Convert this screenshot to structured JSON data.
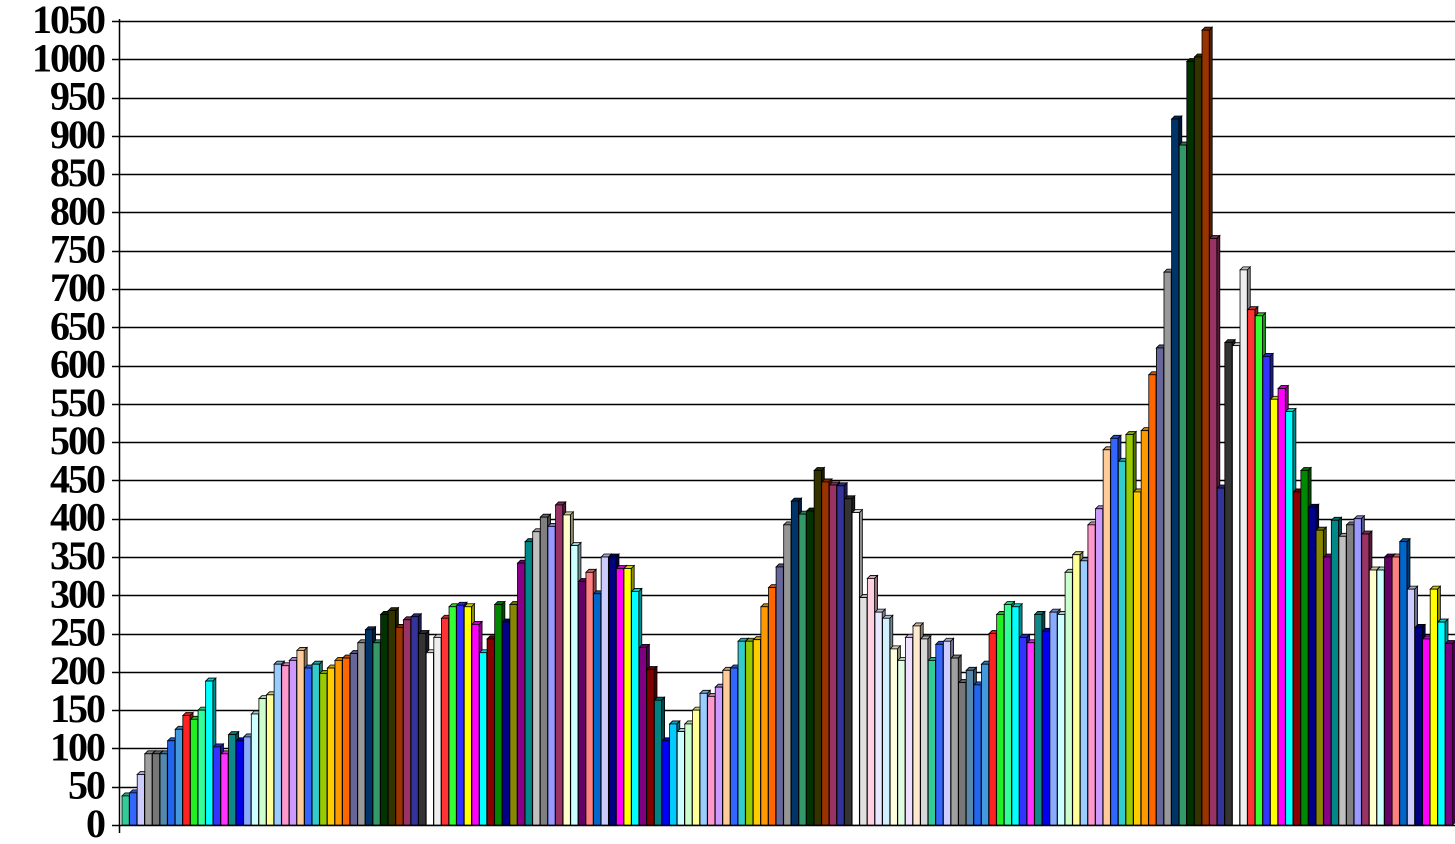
{
  "chart_data": {
    "type": "bar",
    "title": "",
    "xlabel": "",
    "ylabel": "",
    "ylim": [
      0,
      1050
    ],
    "y_ticks": [
      0,
      50,
      100,
      150,
      200,
      250,
      300,
      350,
      400,
      450,
      500,
      550,
      600,
      650,
      700,
      750,
      800,
      850,
      900,
      950,
      1000,
      1050
    ],
    "y_tick_labels": [
      "0",
      "50",
      "100",
      "150",
      "200",
      "250",
      "300",
      "350",
      "400",
      "450",
      "500",
      "550",
      "600",
      "650",
      "700",
      "750",
      "800",
      "850",
      "900",
      "950",
      "1000",
      "1050"
    ],
    "grid": true,
    "legend": "none",
    "style": "3d-shaded",
    "values": [
      38,
      42,
      66,
      93,
      93,
      93,
      110,
      125,
      143,
      138,
      150,
      188,
      102,
      93,
      118,
      110,
      115,
      145,
      165,
      170,
      210,
      208,
      215,
      228,
      205,
      210,
      198,
      205,
      215,
      218,
      224,
      238,
      255,
      238,
      275,
      280,
      258,
      268,
      272,
      250,
      225,
      245,
      270,
      285,
      287,
      285,
      262,
      225,
      243,
      288,
      265,
      288,
      342,
      370,
      383,
      402,
      390,
      418,
      405,
      365,
      318,
      330,
      302,
      350,
      350,
      335,
      335,
      305,
      232,
      203,
      163,
      110,
      132,
      122,
      132,
      150,
      172,
      168,
      180,
      202,
      205,
      240,
      240,
      242,
      285,
      310,
      337,
      392,
      423,
      406,
      410,
      463,
      448,
      444,
      443,
      426,
      408,
      297,
      322,
      278,
      270,
      230,
      215,
      245,
      260,
      243,
      215,
      236,
      240,
      218,
      186,
      202,
      183,
      210,
      250,
      275,
      288,
      285,
      245,
      238,
      275,
      253,
      278,
      275,
      330,
      353,
      345,
      392,
      413,
      490,
      505,
      475,
      510,
      435,
      515,
      588,
      623,
      722,
      922,
      888,
      997,
      1003,
      1038,
      766,
      440,
      630,
      626,
      725,
      673,
      665,
      612,
      556,
      570,
      540,
      435,
      463,
      415,
      385,
      350,
      398,
      377,
      392,
      400,
      380,
      333,
      333,
      350,
      350,
      370,
      308,
      258,
      243,
      308,
      265,
      237
    ],
    "colors": [
      "#33cc99",
      "#3366ff",
      "#ccccff",
      "#a0a0a0",
      "#777777",
      "#5588aa",
      "#2266ee",
      "#4499dd",
      "#ff2222",
      "#22ee22",
      "#33ff99",
      "#00ffff",
      "#3333ff",
      "#ff33ff",
      "#118888",
      "#0000ee",
      "#88aaff",
      "#ccffff",
      "#ccffcc",
      "#ffff99",
      "#99ccff",
      "#ff99cc",
      "#cc99ff",
      "#ffcc99",
      "#3366ff",
      "#33cccc",
      "#99cc00",
      "#ffcc00",
      "#ff9900",
      "#ff6600",
      "#666699",
      "#999999",
      "#003366",
      "#339966",
      "#003300",
      "#333300",
      "#993300",
      "#993366",
      "#333399",
      "#333333",
      "#ffffff",
      "#eeeeee",
      "#ff3333",
      "#33ff33",
      "#3333ff",
      "#ffff00",
      "#ff00ff",
      "#00ffff",
      "#880000",
      "#008800",
      "#000088",
      "#888800",
      "#880088",
      "#008888",
      "#c0c0c0",
      "#808080",
      "#9999ff",
      "#993366",
      "#ffffcc",
      "#ccffff",
      "#660066",
      "#ff8080",
      "#0066cc",
      "#ccccff",
      "#000080",
      "#ff00ff",
      "#ffff00",
      "#00ffff",
      "#800080",
      "#800000",
      "#008080",
      "#0000ff",
      "#00ccff",
      "#ccffff",
      "#ccffcc",
      "#ffff99",
      "#99ccff",
      "#ff99cc",
      "#cc99ff",
      "#ffcc99",
      "#3366ff",
      "#33cccc",
      "#99cc00",
      "#ffcc00",
      "#ff9900",
      "#ff6600",
      "#666699",
      "#969696",
      "#003366",
      "#339966",
      "#003300",
      "#333300",
      "#993300",
      "#993366",
      "#333399",
      "#333333",
      "#ffffff",
      "#e0e0e0",
      "#ffd0e0",
      "#e8e8ff",
      "#d0f0ff",
      "#ffffe0",
      "#e0ffe0",
      "#f0e0ff",
      "#ffe8d0",
      "#d8d8d8"
    ]
  }
}
